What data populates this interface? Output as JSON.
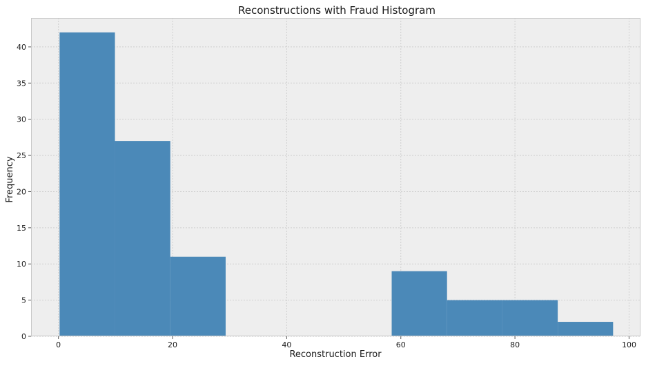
{
  "chart_data": {
    "type": "bar",
    "subtype": "histogram",
    "title": "Reconstructions with Fraud Histogram",
    "xlabel": "Reconstruction Error",
    "ylabel": "Frequency",
    "xlim": [
      -4.8,
      102.0
    ],
    "ylim": [
      0,
      44
    ],
    "xticks": [
      0,
      20,
      40,
      60,
      80,
      100
    ],
    "yticks": [
      0,
      5,
      10,
      15,
      20,
      25,
      30,
      35,
      40
    ],
    "bins": [
      {
        "x0": 0.2,
        "x1": 9.9,
        "count": 42
      },
      {
        "x0": 9.9,
        "x1": 19.6,
        "count": 27
      },
      {
        "x0": 19.6,
        "x1": 29.3,
        "count": 11
      },
      {
        "x0": 29.3,
        "x1": 39.0,
        "count": 0
      },
      {
        "x0": 39.0,
        "x1": 48.7,
        "count": 0
      },
      {
        "x0": 48.7,
        "x1": 58.4,
        "count": 0
      },
      {
        "x0": 58.4,
        "x1": 68.1,
        "count": 9
      },
      {
        "x0": 68.1,
        "x1": 77.8,
        "count": 5
      },
      {
        "x0": 77.8,
        "x1": 87.5,
        "count": 5
      },
      {
        "x0": 87.5,
        "x1": 97.2,
        "count": 2
      }
    ],
    "grid": true,
    "colors": {
      "bar": "#4b89b8",
      "plot_background": "#eeeeee",
      "grid": "#cfcfcf",
      "axes_edge": "#c8c8c8"
    }
  }
}
